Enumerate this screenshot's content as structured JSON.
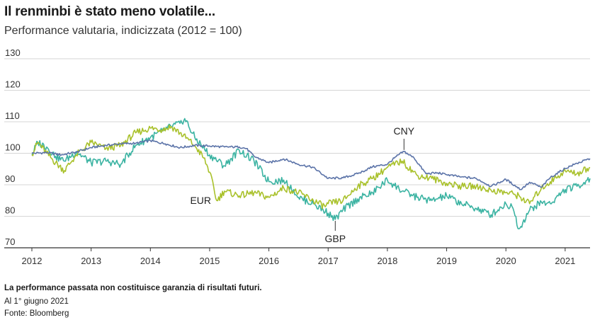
{
  "title": "Il renminbi è stato meno volatile...",
  "subtitle": "Performance valutaria, indicizzata (2012 = 100)",
  "footer": {
    "disclaimer": "La performance passata non costituisce garanzia di risultati futuri.",
    "date": "Al 1° giugno 2021",
    "source": "Fonte: Bloomberg"
  },
  "colors": {
    "CNY": "#5b73a8",
    "EUR": "#a9c12b",
    "GBP": "#3bb3a2",
    "grid": "#d6d6d6",
    "axis": "#333333"
  },
  "chart_data": {
    "type": "line",
    "title": "Il renminbi è stato meno volatile...",
    "subtitle": "Performance valutaria, indicizzata (2012 = 100)",
    "xlim": [
      2012,
      2021.42
    ],
    "ylim": [
      70,
      130
    ],
    "yticks": [
      70,
      80,
      90,
      100,
      110,
      120,
      130
    ],
    "xticks": [
      2012,
      2013,
      2014,
      2015,
      2016,
      2017,
      2018,
      2019,
      2020,
      2021
    ],
    "grid": true,
    "legend": "inline labels",
    "series": [
      {
        "name": "CNY",
        "x": [
          2012,
          2012.25,
          2012.5,
          2012.75,
          2013,
          2013.25,
          2013.5,
          2013.75,
          2014,
          2014.25,
          2014.5,
          2014.75,
          2015,
          2015.25,
          2015.5,
          2015.62,
          2015.75,
          2016,
          2016.25,
          2016.5,
          2016.75,
          2017,
          2017.25,
          2017.5,
          2017.75,
          2018,
          2018.15,
          2018.28,
          2018.45,
          2018.65,
          2018.85,
          2019,
          2019.25,
          2019.5,
          2019.75,
          2020,
          2020.25,
          2020.4,
          2020.6,
          2020.75,
          2021,
          2021.2,
          2021.42
        ],
        "y": [
          100,
          100.2,
          99.5,
          100.4,
          101.8,
          102.5,
          103,
          103.2,
          104,
          103,
          101.8,
          102.5,
          102.3,
          102,
          102,
          101.5,
          99,
          97,
          98.2,
          96.5,
          95.5,
          92,
          92.2,
          93.5,
          95.7,
          96.5,
          99,
          100.6,
          98.5,
          93.5,
          93.8,
          93.2,
          92.5,
          92,
          89.5,
          91.7,
          88.5,
          90.8,
          89.2,
          92.3,
          95.2,
          96.8,
          98.3
        ]
      },
      {
        "name": "EUR",
        "x": [
          2012,
          2012.1,
          2012.25,
          2012.4,
          2012.55,
          2012.75,
          2013,
          2013.25,
          2013.5,
          2013.75,
          2014,
          2014.2,
          2014.35,
          2014.5,
          2014.75,
          2014.9,
          2015,
          2015.12,
          2015.25,
          2015.5,
          2015.75,
          2016,
          2016.25,
          2016.5,
          2016.75,
          2016.95,
          2017,
          2017.25,
          2017.5,
          2017.75,
          2018,
          2018.25,
          2018.5,
          2018.75,
          2019,
          2019.25,
          2019.5,
          2019.75,
          2020,
          2020.15,
          2020.25,
          2020.4,
          2020.6,
          2020.75,
          2021,
          2021.2,
          2021.42
        ],
        "y": [
          99.5,
          103.5,
          100,
          97,
          94.5,
          99.5,
          103.5,
          101.5,
          102.5,
          106.5,
          108,
          107.5,
          108.5,
          106.5,
          102.5,
          98.5,
          94,
          85,
          88,
          86.5,
          87.5,
          86,
          89,
          87.5,
          85,
          83,
          84,
          85,
          89.5,
          92,
          95.5,
          97.5,
          93,
          92,
          90.5,
          89.5,
          89.5,
          88.3,
          87.5,
          87,
          86,
          84,
          89,
          91,
          94.5,
          93.5,
          95.5
        ]
      },
      {
        "name": "GBP",
        "x": [
          2012,
          2012.1,
          2012.25,
          2012.4,
          2012.55,
          2012.75,
          2013,
          2013.25,
          2013.5,
          2013.75,
          2014,
          2014.2,
          2014.35,
          2014.5,
          2014.58,
          2014.75,
          2015,
          2015.25,
          2015.5,
          2015.75,
          2016,
          2016.25,
          2016.42,
          2016.5,
          2016.75,
          2017,
          2017.12,
          2017.25,
          2017.5,
          2017.75,
          2018,
          2018.25,
          2018.5,
          2018.75,
          2019,
          2019.25,
          2019.5,
          2019.75,
          2020,
          2020.12,
          2020.22,
          2020.4,
          2020.6,
          2020.75,
          2021,
          2021.2,
          2021.42
        ],
        "y": [
          99.5,
          103.5,
          102,
          99,
          97.5,
          100.5,
          97,
          97.5,
          96.5,
          102.5,
          105,
          107,
          108.5,
          109.5,
          111,
          105,
          99.5,
          96,
          101,
          97.5,
          91,
          91.5,
          88.5,
          86,
          84,
          81,
          79,
          82,
          85.5,
          87.5,
          91.5,
          88,
          86,
          85,
          86.5,
          84,
          82.5,
          80.5,
          84,
          82.5,
          76,
          82,
          84.5,
          84,
          88.5,
          89.5,
          92
        ]
      }
    ]
  }
}
